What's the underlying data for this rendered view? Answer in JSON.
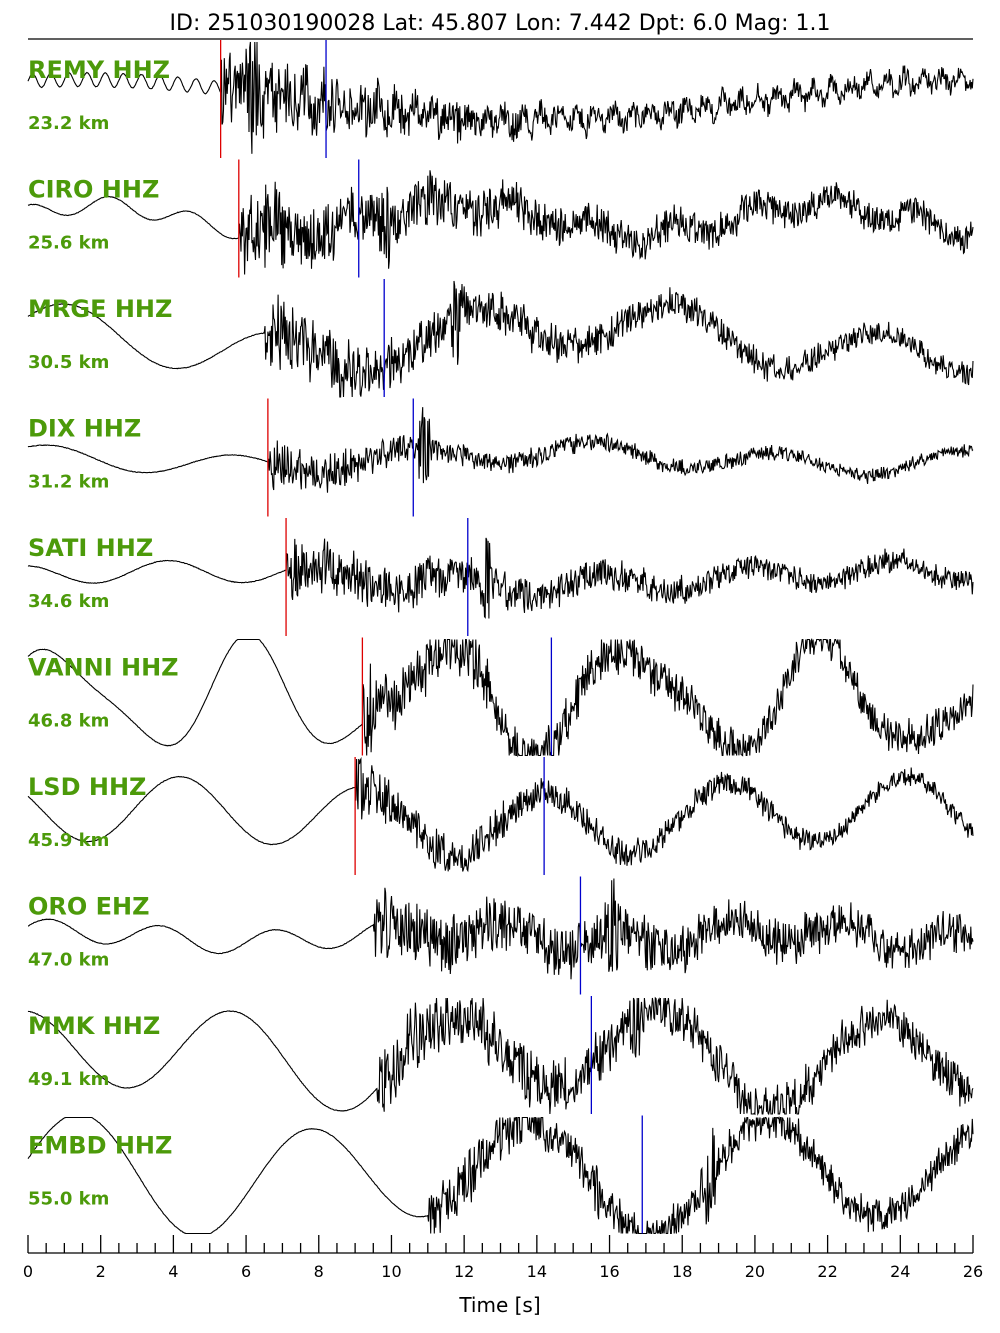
{
  "header": {
    "title": "ID: 251030190028 Lat:  45.807 Lon:   7.442 Dpt:     6.0 Mag:   1.1"
  },
  "colors": {
    "label": "#4c9a0a",
    "p_pick": "#dd0000",
    "s_pick": "#0000cc",
    "trace": "#000000"
  },
  "chart_data": {
    "type": "line",
    "title": "ID: 251030190028 Lat:  45.807 Lon:   7.442 Dpt:     6.0 Mag:   1.1",
    "xlabel": "Time [s]",
    "ylabel": "",
    "xlim": [
      0,
      26
    ],
    "x_ticks": [
      "0",
      "2",
      "4",
      "6",
      "8",
      "10",
      "12",
      "14",
      "16",
      "18",
      "20",
      "22",
      "24",
      "26"
    ],
    "minor_tick_step": 0.5,
    "series": [
      {
        "name": "REMY HHZ",
        "distance": "23.2 km",
        "p_pick": 5.3,
        "s_pick": 8.2,
        "wave": {
          "onset": 5.3,
          "amp": 0.95,
          "decay": 4.0,
          "tail": 0.1,
          "lf": [
            [
              0.12,
              2.0,
              0.0
            ],
            [
              0.35,
              0.04,
              1.2
            ]
          ],
          "spike": 6.2
        }
      },
      {
        "name": "CIRO HHZ",
        "distance": "25.6 km",
        "p_pick": 5.8,
        "s_pick": 9.1,
        "wave": {
          "onset": 5.8,
          "amp": 0.85,
          "decay": 5.5,
          "tail": 0.18,
          "lf": [
            [
              0.15,
              0.45,
              1.5
            ],
            [
              0.25,
              0.1,
              0.4
            ]
          ],
          "spike": 9.8
        }
      },
      {
        "name": "MRGE HHZ",
        "distance": "30.5 km",
        "p_pick": null,
        "s_pick": 9.8,
        "wave": {
          "onset": 6.5,
          "amp": 0.7,
          "decay": 6.5,
          "tail": 0.15,
          "lf": [
            [
              0.4,
              0.18,
              0.3
            ],
            [
              0.3,
              0.06,
              2.0
            ]
          ],
          "spike": 11.8
        }
      },
      {
        "name": "DIX HHZ",
        "distance": "31.2 km",
        "p_pick": 6.6,
        "s_pick": 10.6,
        "wave": {
          "onset": 6.6,
          "amp": 0.55,
          "decay": 3.5,
          "tail": 0.08,
          "lf": [
            [
              0.18,
              0.2,
              0.8
            ],
            [
              0.12,
              0.06,
              2.5
            ]
          ],
          "spike": 10.9
        }
      },
      {
        "name": "SATI HHZ",
        "distance": "34.6 km",
        "p_pick": 7.1,
        "s_pick": 12.1,
        "wave": {
          "onset": 7.1,
          "amp": 0.55,
          "decay": 8.0,
          "tail": 0.12,
          "lf": [
            [
              0.18,
              0.25,
              1.8
            ],
            [
              0.12,
              0.05,
              0.3
            ]
          ],
          "spike": 12.6
        }
      },
      {
        "name": "VANNI HHZ",
        "distance": "46.8 km",
        "p_pick": 9.2,
        "s_pick": 14.4,
        "wave": {
          "onset": 9.2,
          "amp": 0.45,
          "decay": 10.0,
          "tail": 0.25,
          "lf": [
            [
              0.85,
              0.19,
              0.6
            ],
            [
              0.25,
              0.32,
              2.0
            ]
          ],
          "spike": 9.3
        }
      },
      {
        "name": "LSD HHZ",
        "distance": "45.9 km",
        "p_pick": 9.0,
        "s_pick": 14.2,
        "wave": {
          "onset": 9.0,
          "amp": 0.45,
          "decay": 7.0,
          "tail": 0.12,
          "lf": [
            [
              0.55,
              0.2,
              2.6
            ],
            [
              0.15,
              0.05,
              0.5
            ]
          ],
          "spike": 9.1
        }
      },
      {
        "name": "ORO EHZ",
        "distance": "47.0 km",
        "p_pick": null,
        "s_pick": 15.2,
        "wave": {
          "onset": 9.5,
          "amp": 0.45,
          "decay": 12.0,
          "tail": 0.3,
          "lf": [
            [
              0.2,
              0.32,
              0.5
            ],
            [
              0.1,
              0.1,
              1.0
            ]
          ],
          "spike": 16.1
        }
      },
      {
        "name": "MMK HHZ",
        "distance": "49.1 km",
        "p_pick": null,
        "s_pick": 15.5,
        "wave": {
          "onset": 9.6,
          "amp": 0.55,
          "decay": 12.0,
          "tail": 0.25,
          "lf": [
            [
              0.75,
              0.17,
              1.8
            ],
            [
              0.2,
              0.08,
              0.2
            ]
          ],
          "spike": 16.7
        }
      },
      {
        "name": "EMBD HHZ",
        "distance": "55.0 km",
        "p_pick": null,
        "s_pick": 16.9,
        "wave": {
          "onset": 11.0,
          "amp": 0.45,
          "decay": 10.0,
          "tail": 0.2,
          "lf": [
            [
              0.9,
              0.16,
              0.1
            ],
            [
              0.2,
              0.09,
              1.4
            ]
          ],
          "spike": 18.8
        }
      }
    ]
  }
}
